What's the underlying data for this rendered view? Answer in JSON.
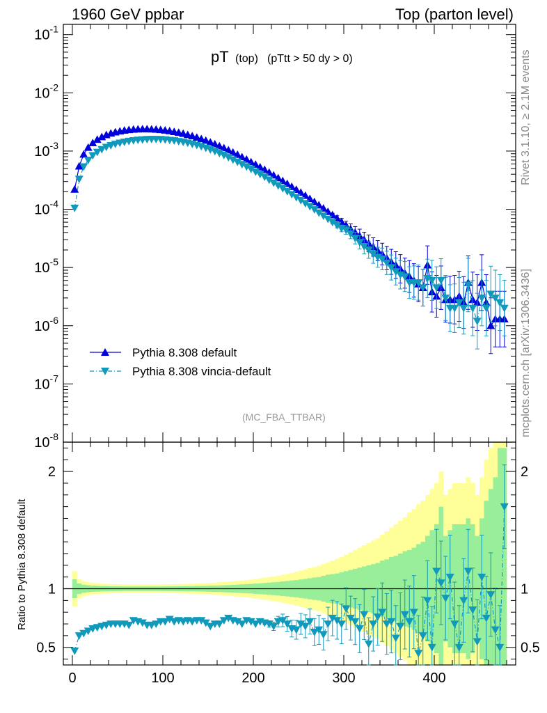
{
  "header": {
    "left": "1960 GeV ppbar",
    "right": "Top (parton level)"
  },
  "side_labels": {
    "rivet": "Rivet 3.1.10, ≥ 2.1M events",
    "mcplots": "mcplots.cern.ch [arXiv:1306.3436]"
  },
  "colors": {
    "default": "#0000dd",
    "vincia": "#1199bb",
    "band_inner": "#99ee99",
    "band_outer": "#ffff99"
  },
  "chart_data": [
    {
      "type": "line",
      "title": "pT (top) (pTtt > 50 dy > 0)",
      "title_main": "pT",
      "title_sub": "(top)",
      "title_cond": "(pTtt > 50 dy > 0)",
      "watermark": "(MC_FBA_TTBAR)",
      "yscale": "log",
      "ylim": [
        1e-08,
        0.15
      ],
      "xlim": [
        -10,
        490
      ],
      "y_tick_labels": [
        "10^-8",
        "10^-7",
        "10^-6",
        "10^-5",
        "10^-4",
        "10^-3",
        "10^-2",
        "10^-1"
      ],
      "legend": {
        "placement": "lower-left"
      },
      "x": [
        2.5,
        7.5,
        12.5,
        17.5,
        22.5,
        27.5,
        32.5,
        37.5,
        42.5,
        47.5,
        52.5,
        57.5,
        62.5,
        67.5,
        72.5,
        77.5,
        82.5,
        87.5,
        92.5,
        97.5,
        102.5,
        107.5,
        112.5,
        117.5,
        122.5,
        127.5,
        132.5,
        137.5,
        142.5,
        147.5,
        152.5,
        157.5,
        162.5,
        167.5,
        172.5,
        177.5,
        182.5,
        187.5,
        192.5,
        197.5,
        202.5,
        207.5,
        212.5,
        217.5,
        222.5,
        227.5,
        232.5,
        237.5,
        242.5,
        247.5,
        252.5,
        257.5,
        262.5,
        267.5,
        272.5,
        277.5,
        282.5,
        287.5,
        292.5,
        297.5,
        302.5,
        307.5,
        312.5,
        317.5,
        322.5,
        327.5,
        332.5,
        337.5,
        342.5,
        347.5,
        352.5,
        357.5,
        362.5,
        367.5,
        372.5,
        377.5,
        382.5,
        387.5,
        392.5,
        397.5,
        402.5,
        407.5,
        412.5,
        417.5,
        422.5,
        427.5,
        432.5,
        437.5,
        442.5,
        447.5,
        452.5,
        457.5,
        462.5,
        467.5,
        472.5,
        477.5
      ],
      "series": [
        {
          "name": "Pythia 8.308 default",
          "y": [
            0.00022,
            0.00055,
            0.00088,
            0.00115,
            0.00138,
            0.00158,
            0.00175,
            0.0019,
            0.00202,
            0.00212,
            0.0022,
            0.00227,
            0.00232,
            0.00236,
            0.00238,
            0.00239,
            0.00239,
            0.00238,
            0.00236,
            0.00232,
            0.00228,
            0.00222,
            0.00215,
            0.00208,
            0.002,
            0.00191,
            0.00182,
            0.00172,
            0.00162,
            0.00152,
            0.00142,
            0.00132,
            0.00122,
            0.00113,
            0.00104,
            0.00095,
            0.00087,
            0.00079,
            0.00072,
            0.00065,
            0.00059,
            0.00053,
            0.00048,
            0.00043,
            0.000385,
            0.000345,
            0.000308,
            0.000275,
            0.000245,
            0.000218,
            0.000194,
            0.000172,
            0.000152,
            0.000134,
            0.000118,
            0.000104,
            9.1e-05,
            8e-05,
            7e-05,
            6.1e-05,
            5.3e-05,
            4.6e-05,
            4e-05,
            3.5e-05,
            3e-05,
            2.6e-05,
            2.25e-05,
            1.95e-05,
            1.7e-05,
            1.45e-05,
            1.25e-05,
            1.1e-05,
            9.5e-06,
            8e-06,
            7e-06,
            6e-06,
            5.2e-06,
            4.5e-06,
            1.1e-05,
            3.8e-06,
            3.2e-06,
            4.5e-06,
            2.8e-06,
            2.8e-06,
            2.8e-06,
            3.2e-06,
            2.5e-06,
            5.5e-06,
            2.8e-06,
            2.5e-06,
            5.5e-06,
            2.5e-06,
            1e-06,
            1.3e-06,
            1.3e-06,
            1.3e-06
          ]
        },
        {
          "name": "Pythia 8.308 vincia-default",
          "y": [
            0.000105,
            0.00033,
            0.00054,
            0.0007,
            0.00084,
            0.00096,
            0.00107,
            0.00117,
            0.00125,
            0.00132,
            0.00138,
            0.00143,
            0.00148,
            0.00152,
            0.00155,
            0.00157,
            0.00159,
            0.0016,
            0.0016,
            0.00159,
            0.00157,
            0.00154,
            0.00151,
            0.00147,
            0.00143,
            0.00138,
            0.00132,
            0.00126,
            0.0012,
            0.00113,
            0.00106,
            0.00099,
            0.00092,
            0.00085,
            0.00078,
            0.00071,
            0.00065,
            0.00059,
            0.00054,
            0.00049,
            0.00044,
            0.0004,
            0.00036,
            0.00032,
            0.000285,
            0.000255,
            0.000228,
            0.000203,
            0.00018,
            0.00016,
            0.000142,
            0.000126,
            0.000112,
            9.9e-05,
            8.7e-05,
            7.7e-05,
            6.8e-05,
            6e-05,
            5.3e-05,
            4.7e-05,
            4.4e-05,
            3.8e-05,
            3.2e-05,
            2.7e-05,
            2.3e-05,
            2e-05,
            1.7e-05,
            1.5e-05,
            1.4e-05,
            1.2e-05,
            1e-05,
            8.5e-06,
            7.5e-06,
            7e-06,
            5.5e-06,
            5.5e-06,
            5.5e-06,
            4.5e-06,
            6.5e-06,
            6e-06,
            4.5e-06,
            6e-06,
            3e-06,
            2e-06,
            2e-06,
            2.5e-06,
            2e-06,
            5e-06,
            2e-06,
            1.2e-06,
            3e-06,
            2e-06,
            3.5e-06,
            3e-06,
            2.5e-06,
            2e-06
          ]
        }
      ]
    },
    {
      "type": "line",
      "ylabel": "Ratio to Pythia 8.308 default",
      "ylim": [
        0.35,
        2.25
      ],
      "xlim": [
        -10,
        490
      ],
      "x_ticks": [
        0,
        100,
        200,
        300,
        400
      ],
      "y_ticks": [
        0.5,
        1,
        2
      ],
      "reference_line": 1,
      "series": [
        {
          "name": "Pythia 8.308 vincia-default",
          "y": [
            0.47,
            0.6,
            0.62,
            0.64,
            0.66,
            0.67,
            0.68,
            0.69,
            0.7,
            0.7,
            0.7,
            0.7,
            0.69,
            0.73,
            0.72,
            0.71,
            0.69,
            0.69,
            0.7,
            0.72,
            0.72,
            0.74,
            0.72,
            0.73,
            0.72,
            0.73,
            0.72,
            0.73,
            0.73,
            0.71,
            0.68,
            0.7,
            0.7,
            0.73,
            0.75,
            0.73,
            0.72,
            0.7,
            0.73,
            0.72,
            0.7,
            0.72,
            0.71,
            0.7,
            0.68,
            0.72,
            0.73,
            0.7,
            0.66,
            0.65,
            0.7,
            0.68,
            0.72,
            0.63,
            0.65,
            0.61,
            0.7,
            0.75,
            0.73,
            0.7,
            0.83,
            0.75,
            0.72,
            0.66,
            0.78,
            0.53,
            0.7,
            0.76,
            0.8,
            0.7,
            0.72,
            0.58,
            0.68,
            0.78,
            0.72,
            0.8,
            0.45,
            0.6,
            0.9,
            0.5,
            1.15,
            1.05,
            0.92,
            1.1,
            0.7,
            0.5,
            0.9,
            1.15,
            0.82,
            0.55,
            1.1,
            0.75,
            0.95,
            0.65,
            0.5,
            1.7
          ]
        }
      ],
      "bands": {
        "inner_halfwidth": [
          0.08,
          0.045,
          0.035,
          0.03,
          0.027,
          0.025,
          0.023,
          0.022,
          0.021,
          0.02,
          0.02,
          0.019,
          0.019,
          0.019,
          0.019,
          0.019,
          0.019,
          0.019,
          0.019,
          0.019,
          0.02,
          0.02,
          0.02,
          0.021,
          0.021,
          0.022,
          0.022,
          0.023,
          0.024,
          0.025,
          0.026,
          0.027,
          0.028,
          0.03,
          0.031,
          0.033,
          0.035,
          0.037,
          0.039,
          0.041,
          0.044,
          0.046,
          0.049,
          0.052,
          0.055,
          0.058,
          0.062,
          0.066,
          0.07,
          0.074,
          0.079,
          0.084,
          0.09,
          0.096,
          0.1,
          0.11,
          0.12,
          0.125,
          0.13,
          0.14,
          0.15,
          0.16,
          0.17,
          0.18,
          0.19,
          0.2,
          0.21,
          0.22,
          0.24,
          0.25,
          0.27,
          0.28,
          0.3,
          0.32,
          0.33,
          0.35,
          0.38,
          0.4,
          0.45,
          0.5,
          0.55,
          0.7,
          0.45,
          0.5,
          0.55,
          0.55,
          0.55,
          0.6,
          0.55,
          0.45,
          0.6,
          0.75,
          0.85,
          0.95,
          1.2,
          1.2
        ],
        "outer_halfwidth": [
          0.15,
          0.08,
          0.065,
          0.056,
          0.05,
          0.046,
          0.043,
          0.041,
          0.04,
          0.039,
          0.038,
          0.037,
          0.036,
          0.036,
          0.036,
          0.036,
          0.036,
          0.036,
          0.036,
          0.037,
          0.038,
          0.038,
          0.039,
          0.04,
          0.041,
          0.042,
          0.043,
          0.044,
          0.046,
          0.048,
          0.05,
          0.052,
          0.055,
          0.057,
          0.06,
          0.063,
          0.067,
          0.07,
          0.074,
          0.078,
          0.083,
          0.088,
          0.093,
          0.099,
          0.105,
          0.112,
          0.12,
          0.127,
          0.135,
          0.145,
          0.155,
          0.165,
          0.175,
          0.185,
          0.195,
          0.21,
          0.225,
          0.24,
          0.255,
          0.27,
          0.29,
          0.31,
          0.33,
          0.35,
          0.37,
          0.39,
          0.41,
          0.43,
          0.46,
          0.49,
          0.52,
          0.55,
          0.58,
          0.61,
          0.65,
          0.68,
          0.72,
          0.75,
          0.8,
          0.85,
          0.9,
          1.0,
          0.8,
          0.85,
          0.9,
          0.9,
          0.9,
          0.95,
          0.9,
          0.8,
          0.95,
          1.1,
          1.2,
          1.3,
          1.4,
          1.4
        ]
      }
    }
  ]
}
